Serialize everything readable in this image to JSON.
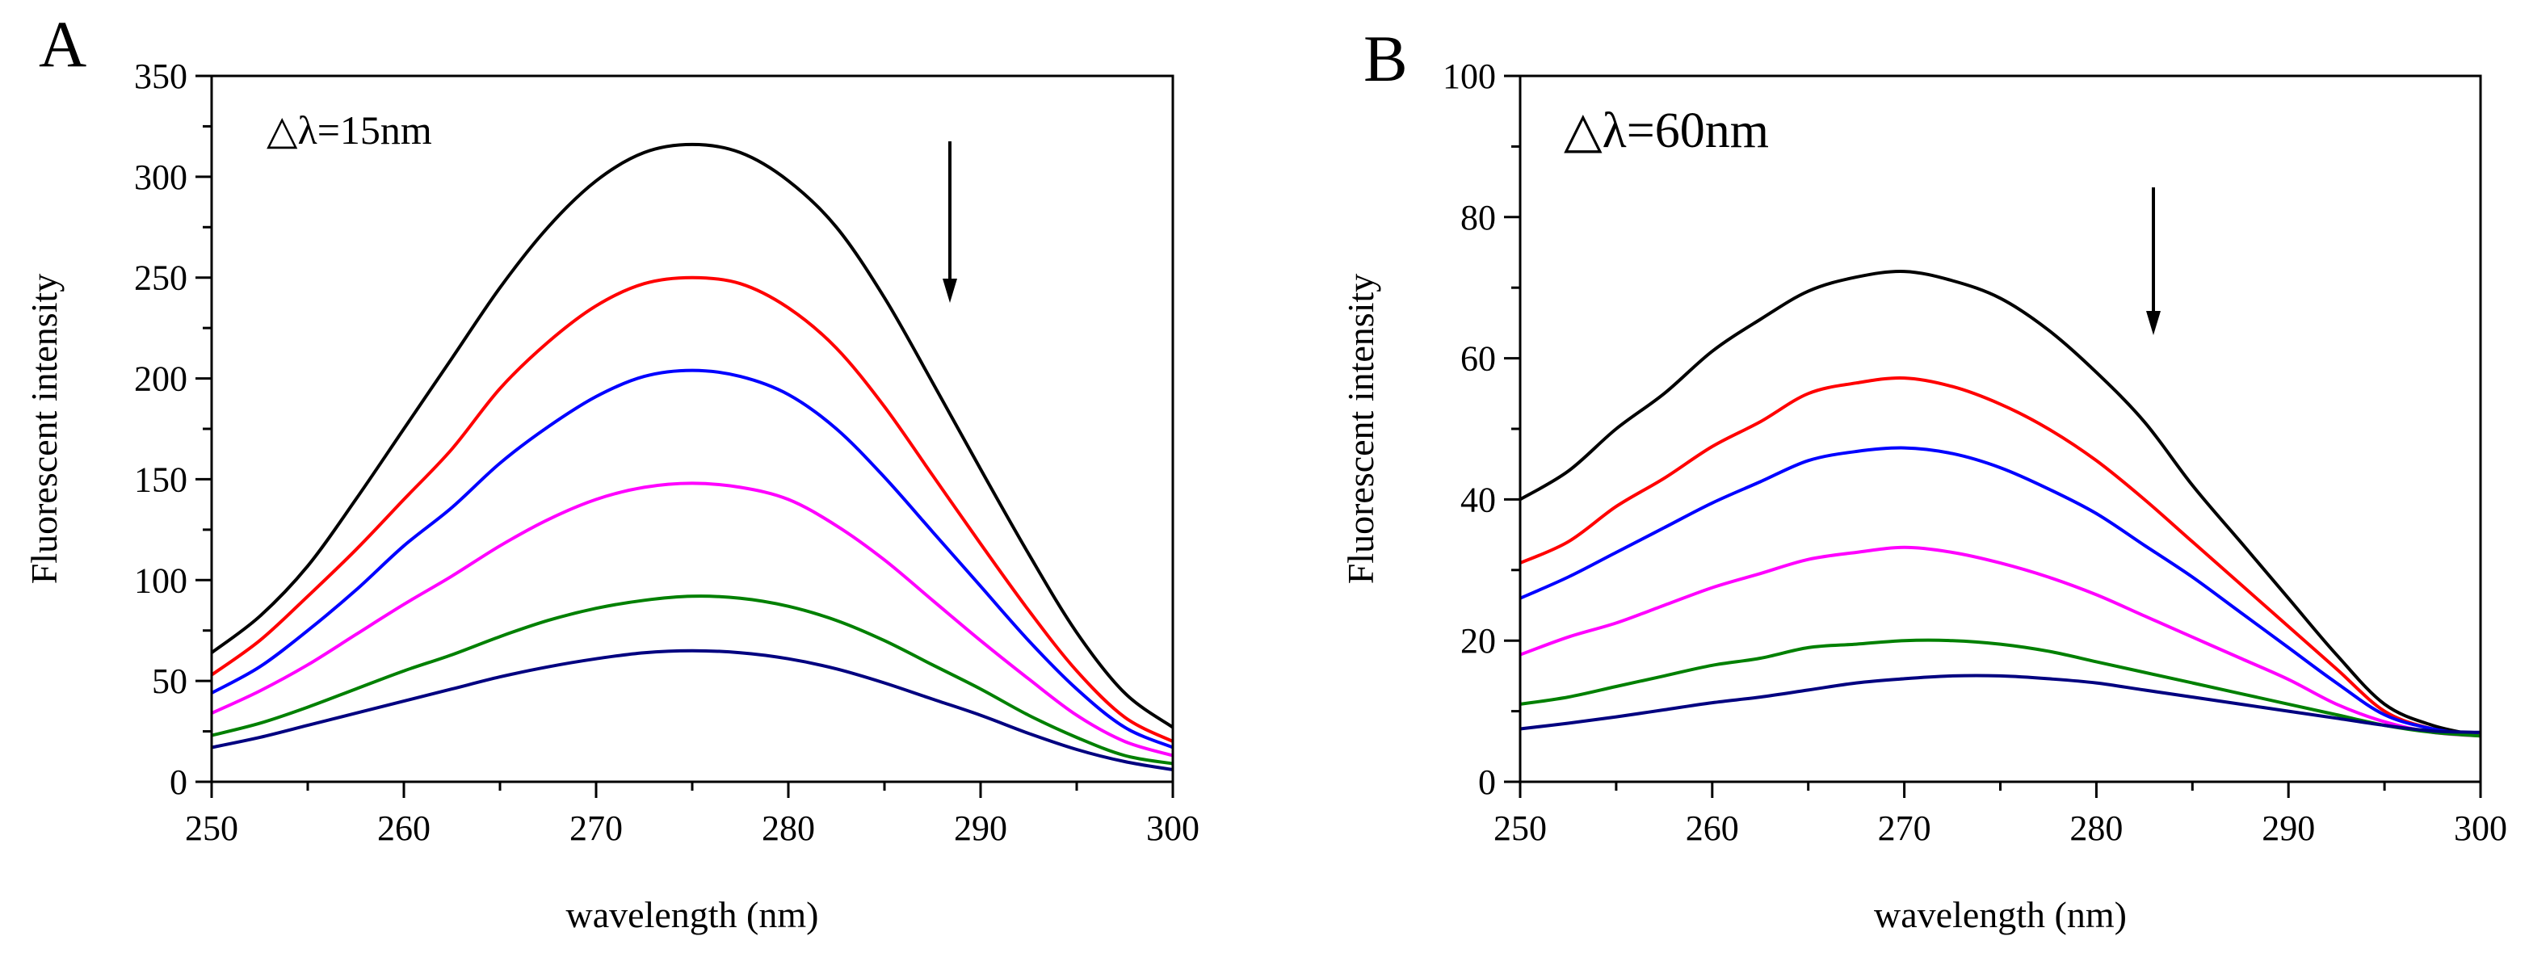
{
  "figure": {
    "panels": [
      "A",
      "B"
    ]
  },
  "chart_data": [
    {
      "panel_label": "A",
      "type": "line",
      "annotation": "△λ=15nm",
      "arrow_direction": "down",
      "xlabel": "wavelength (nm)",
      "ylabel": "Fluorescent intensity",
      "xlim": [
        250,
        300
      ],
      "ylim": [
        0,
        350
      ],
      "xticks": [
        250,
        260,
        270,
        280,
        290,
        300
      ],
      "yticks": [
        0,
        50,
        100,
        150,
        200,
        250,
        300,
        350
      ],
      "x": [
        250,
        252.5,
        255,
        257.5,
        260,
        262.5,
        265,
        267.5,
        270,
        272.5,
        275,
        277.5,
        280,
        282.5,
        285,
        287.5,
        290,
        292.5,
        295,
        297.5,
        300
      ],
      "series": [
        {
          "name": "curve 1",
          "color": "#000000",
          "values": [
            64,
            82,
            107,
            140,
            175,
            210,
            245,
            275,
            298,
            312,
            316,
            312,
            298,
            275,
            240,
            198,
            155,
            113,
            74,
            44,
            27
          ]
        },
        {
          "name": "curve 2",
          "color": "#ff0000",
          "values": [
            53,
            70,
            92,
            115,
            140,
            165,
            195,
            218,
            236,
            247,
            250,
            247,
            235,
            215,
            186,
            152,
            118,
            85,
            55,
            32,
            20
          ]
        },
        {
          "name": "curve 3",
          "color": "#0000ff",
          "values": [
            44,
            57,
            75,
            95,
            117,
            136,
            158,
            176,
            191,
            201,
            204,
            201,
            192,
            175,
            151,
            124,
            97,
            70,
            46,
            27,
            17
          ]
        },
        {
          "name": "curve 4",
          "color": "#ff00ff",
          "values": [
            34,
            45,
            58,
            73,
            88,
            102,
            117,
            130,
            140,
            146,
            148,
            146,
            140,
            127,
            110,
            90,
            70,
            51,
            33,
            20,
            13
          ]
        },
        {
          "name": "curve 5",
          "color": "#008000",
          "values": [
            23,
            29,
            37,
            46,
            55,
            63,
            72,
            80,
            86,
            90,
            92,
            91,
            87,
            80,
            70,
            58,
            46,
            33,
            22,
            13,
            9
          ]
        },
        {
          "name": "curve 6",
          "color": "#000080",
          "values": [
            17,
            22,
            28,
            34,
            40,
            46,
            52,
            57,
            61,
            64,
            65,
            64,
            61,
            56,
            49,
            41,
            33,
            24,
            16,
            10,
            6
          ]
        }
      ]
    },
    {
      "panel_label": "B",
      "type": "line",
      "annotation": "△λ=60nm",
      "arrow_direction": "down",
      "xlabel": "wavelength (nm)",
      "ylabel": "Fluorescent intensity",
      "xlim": [
        250,
        300
      ],
      "ylim": [
        0,
        100
      ],
      "xticks": [
        250,
        260,
        270,
        280,
        290,
        300
      ],
      "yticks": [
        0,
        20,
        40,
        60,
        80,
        100
      ],
      "x": [
        250,
        252.5,
        255,
        257.5,
        260,
        262.5,
        265,
        267.5,
        270,
        272.5,
        275,
        277.5,
        280,
        282.5,
        285,
        287.5,
        290,
        292.5,
        295,
        297.5,
        300
      ],
      "series": [
        {
          "name": "curve 1",
          "color": "#000000",
          "values": [
            40,
            44,
            50,
            55,
            61,
            65.5,
            69.5,
            71.5,
            72.3,
            71,
            68.5,
            64,
            58,
            51,
            42,
            34,
            26,
            18,
            11,
            8,
            6.5
          ]
        },
        {
          "name": "curve 2",
          "color": "#ff0000",
          "values": [
            31,
            34,
            39,
            43,
            47.5,
            51,
            55,
            56.5,
            57.2,
            56,
            53.5,
            50,
            45.5,
            40,
            34,
            28,
            22,
            16,
            10,
            7.5,
            6.5
          ]
        },
        {
          "name": "curve 3",
          "color": "#0000ff",
          "values": [
            26,
            29,
            32.5,
            36,
            39.5,
            42.5,
            45.5,
            46.8,
            47.3,
            46.5,
            44.5,
            41.5,
            38,
            33.5,
            29,
            24,
            19,
            14,
            9.5,
            7.5,
            6.5
          ]
        },
        {
          "name": "curve 4",
          "color": "#ff00ff",
          "values": [
            18,
            20.5,
            22.5,
            25,
            27.5,
            29.5,
            31.5,
            32.5,
            33.2,
            32.5,
            31,
            29,
            26.5,
            23.5,
            20.5,
            17.5,
            14.5,
            11,
            8.5,
            7,
            6.5
          ]
        },
        {
          "name": "curve 5",
          "color": "#008000",
          "values": [
            11,
            12,
            13.5,
            15,
            16.5,
            17.5,
            19,
            19.5,
            20,
            20,
            19.5,
            18.5,
            17,
            15.5,
            14,
            12.5,
            11,
            9.5,
            8,
            7,
            6.5
          ]
        },
        {
          "name": "curve 6",
          "color": "#000080",
          "values": [
            7.5,
            8.3,
            9.2,
            10.2,
            11.2,
            12,
            13,
            14,
            14.6,
            15,
            15,
            14.6,
            14,
            13,
            12,
            11,
            10,
            9,
            8,
            7.2,
            7
          ]
        }
      ]
    }
  ]
}
